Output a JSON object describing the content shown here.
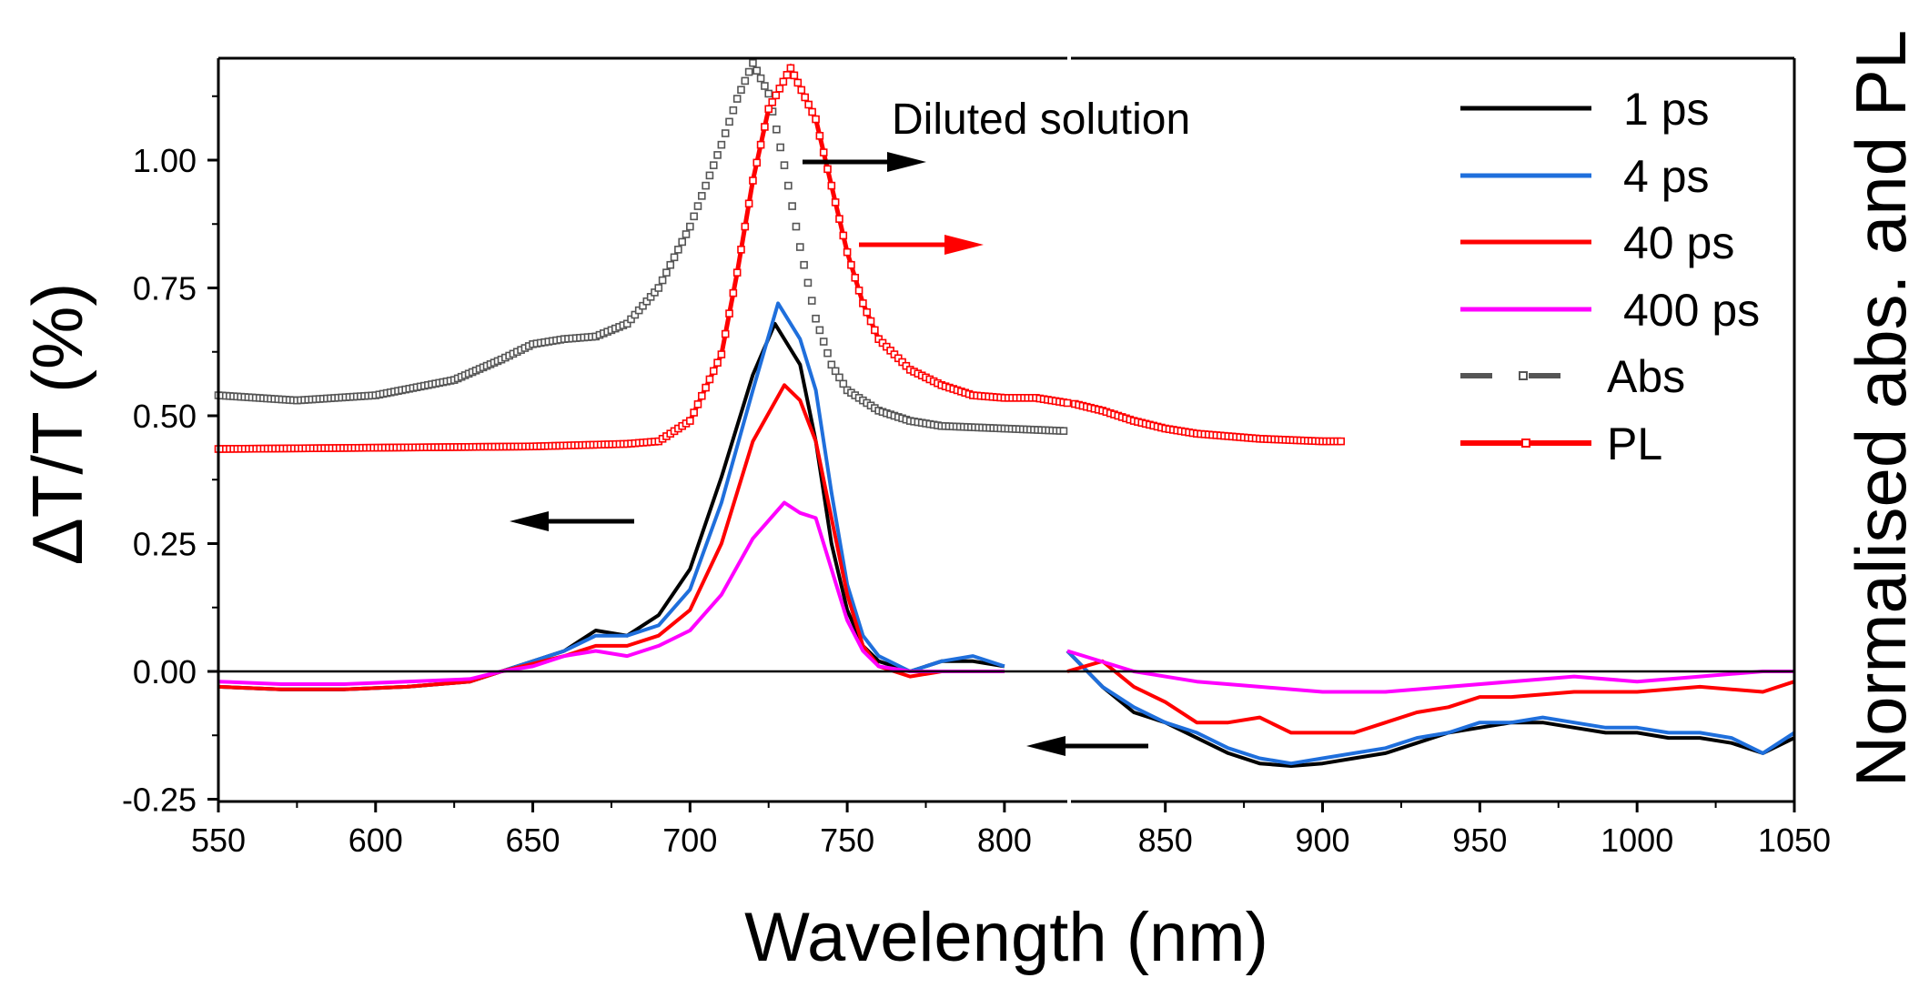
{
  "chart_data": {
    "type": "line",
    "title": "",
    "annotation": "Diluted solution",
    "xlabel": "Wavelength (nm)",
    "ylabel": "ΔT/T (%)",
    "ylabel_right": "Normalised abs. and PL",
    "xlim": [
      550,
      1050
    ],
    "x_break": 820,
    "ylim": [
      -0.25,
      1.2
    ],
    "xticks": [
      550,
      600,
      650,
      700,
      750,
      800,
      850,
      900,
      950,
      1000,
      1050
    ],
    "xtick_labels": [
      "550",
      "600",
      "650",
      "700",
      "750",
      "800",
      "850",
      "900",
      "950",
      "1000",
      "1050"
    ],
    "yticks": [
      -0.25,
      0,
      0.25,
      0.5,
      0.75,
      1.0
    ],
    "ytick_labels": [
      "-0.25",
      "0.00",
      "0.25",
      "0.50",
      "0.75",
      "1.00"
    ],
    "legend_position": "top-right",
    "colors": {
      "1ps": "#000000",
      "4ps": "#1f6fdc",
      "40ps": "#ff0000",
      "400ps": "#ff00ff",
      "abs": "#555555",
      "pl": "#ff0000"
    },
    "series": [
      {
        "name": "1 ps",
        "color": "#000000",
        "style": "line",
        "x": [
          550,
          570,
          590,
          610,
          630,
          640,
          650,
          660,
          670,
          680,
          690,
          700,
          710,
          720,
          727,
          735,
          740,
          745,
          750,
          755,
          760,
          770,
          780,
          790,
          800,
          820,
          830,
          840,
          850,
          860,
          870,
          880,
          890,
          900,
          910,
          920,
          930,
          940,
          950,
          960,
          970,
          980,
          990,
          1000,
          1010,
          1020,
          1030,
          1040,
          1050
        ],
        "y": [
          -0.03,
          -0.035,
          -0.035,
          -0.03,
          -0.02,
          0.0,
          0.02,
          0.04,
          0.08,
          0.07,
          0.11,
          0.2,
          0.38,
          0.58,
          0.68,
          0.6,
          0.45,
          0.25,
          0.12,
          0.05,
          0.02,
          0.0,
          0.02,
          0.02,
          0.01,
          0.04,
          -0.03,
          -0.08,
          -0.1,
          -0.13,
          -0.16,
          -0.18,
          -0.185,
          -0.18,
          -0.17,
          -0.16,
          -0.14,
          -0.12,
          -0.11,
          -0.1,
          -0.1,
          -0.11,
          -0.12,
          -0.12,
          -0.13,
          -0.13,
          -0.14,
          -0.16,
          -0.13
        ]
      },
      {
        "name": "4 ps",
        "color": "#1f6fdc",
        "style": "line",
        "x": [
          550,
          570,
          590,
          610,
          630,
          640,
          650,
          660,
          670,
          680,
          690,
          700,
          710,
          720,
          728,
          735,
          740,
          745,
          750,
          755,
          760,
          770,
          780,
          790,
          800,
          820,
          830,
          840,
          850,
          860,
          870,
          880,
          890,
          900,
          910,
          920,
          930,
          940,
          950,
          960,
          970,
          980,
          990,
          1000,
          1010,
          1020,
          1030,
          1040,
          1050
        ],
        "y": [
          -0.03,
          -0.035,
          -0.035,
          -0.03,
          -0.02,
          0.0,
          0.02,
          0.04,
          0.07,
          0.07,
          0.09,
          0.16,
          0.33,
          0.55,
          0.72,
          0.65,
          0.55,
          0.35,
          0.17,
          0.07,
          0.03,
          0.0,
          0.02,
          0.03,
          0.01,
          0.04,
          -0.03,
          -0.07,
          -0.1,
          -0.12,
          -0.15,
          -0.17,
          -0.18,
          -0.17,
          -0.16,
          -0.15,
          -0.13,
          -0.12,
          -0.1,
          -0.1,
          -0.09,
          -0.1,
          -0.11,
          -0.11,
          -0.12,
          -0.12,
          -0.13,
          -0.16,
          -0.12
        ]
      },
      {
        "name": "40 ps",
        "color": "#ff0000",
        "style": "line",
        "x": [
          550,
          570,
          590,
          610,
          630,
          640,
          650,
          660,
          670,
          680,
          690,
          700,
          710,
          720,
          730,
          735,
          740,
          745,
          750,
          755,
          760,
          770,
          780,
          790,
          800,
          820,
          830,
          840,
          850,
          860,
          870,
          880,
          890,
          900,
          910,
          920,
          930,
          940,
          950,
          960,
          980,
          1000,
          1020,
          1040,
          1050
        ],
        "y": [
          -0.03,
          -0.035,
          -0.035,
          -0.03,
          -0.02,
          0.0,
          0.015,
          0.03,
          0.05,
          0.05,
          0.07,
          0.12,
          0.25,
          0.45,
          0.56,
          0.53,
          0.45,
          0.3,
          0.15,
          0.05,
          0.01,
          -0.01,
          0.0,
          0.0,
          0.0,
          0.0,
          0.02,
          -0.03,
          -0.06,
          -0.1,
          -0.1,
          -0.09,
          -0.12,
          -0.12,
          -0.12,
          -0.1,
          -0.08,
          -0.07,
          -0.05,
          -0.05,
          -0.04,
          -0.04,
          -0.03,
          -0.04,
          -0.02
        ]
      },
      {
        "name": "400 ps",
        "color": "#ff00ff",
        "style": "line",
        "x": [
          550,
          570,
          590,
          610,
          630,
          640,
          650,
          660,
          670,
          680,
          690,
          700,
          710,
          720,
          730,
          735,
          740,
          745,
          750,
          755,
          760,
          770,
          780,
          790,
          800,
          820,
          840,
          860,
          880,
          900,
          920,
          940,
          960,
          980,
          1000,
          1020,
          1040,
          1050
        ],
        "y": [
          -0.02,
          -0.025,
          -0.025,
          -0.02,
          -0.015,
          0.0,
          0.01,
          0.03,
          0.04,
          0.03,
          0.05,
          0.08,
          0.15,
          0.26,
          0.33,
          0.31,
          0.3,
          0.2,
          0.1,
          0.04,
          0.01,
          0.0,
          0.0,
          0.0,
          0.0,
          0.04,
          0.0,
          -0.02,
          -0.03,
          -0.04,
          -0.04,
          -0.03,
          -0.02,
          -0.01,
          -0.02,
          -0.01,
          0.0,
          0.0
        ]
      },
      {
        "name": "Abs",
        "color": "#555555",
        "style": "dash-square",
        "x": [
          550,
          575,
          600,
          625,
          640,
          650,
          660,
          670,
          680,
          690,
          700,
          710,
          715,
          720,
          725,
          730,
          735,
          740,
          745,
          750,
          760,
          770,
          780,
          800,
          820
        ],
        "y": [
          0.54,
          0.53,
          0.54,
          0.57,
          0.61,
          0.64,
          0.65,
          0.655,
          0.68,
          0.75,
          0.87,
          1.03,
          1.12,
          1.19,
          1.13,
          0.99,
          0.83,
          0.69,
          0.6,
          0.55,
          0.51,
          0.49,
          0.48,
          0.475,
          0.47
        ]
      },
      {
        "name": "PL",
        "color": "#ff0000",
        "style": "line-square",
        "x": [
          550,
          650,
          680,
          690,
          700,
          710,
          715,
          720,
          725,
          732,
          740,
          745,
          750,
          755,
          760,
          770,
          780,
          790,
          800,
          810,
          820,
          830,
          840,
          850,
          860,
          870,
          880,
          900,
          907
        ],
        "y": [
          0.435,
          0.44,
          0.445,
          0.45,
          0.49,
          0.62,
          0.78,
          0.96,
          1.1,
          1.18,
          1.08,
          0.95,
          0.82,
          0.72,
          0.65,
          0.59,
          0.56,
          0.54,
          0.535,
          0.535,
          0.525,
          0.51,
          0.49,
          0.475,
          0.465,
          0.46,
          0.455,
          0.45,
          0.45
        ]
      }
    ]
  }
}
